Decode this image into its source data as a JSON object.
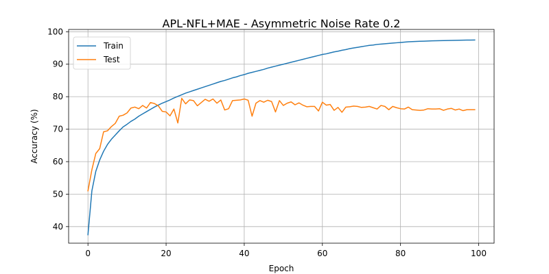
{
  "chart_data": {
    "type": "line",
    "title": "APL-NFL+MAE - Asymmetric Noise Rate 0.2",
    "xlabel": "Epoch",
    "ylabel": "Accuracy (%)",
    "xlim": [
      -4.95,
      103.95
    ],
    "ylim": [
      34.9,
      100.7
    ],
    "xticks": [
      0,
      20,
      40,
      60,
      80,
      100
    ],
    "yticks": [
      40,
      50,
      60,
      70,
      80,
      90,
      100
    ],
    "grid": true,
    "legend_position": "upper-left",
    "x": [
      0,
      1,
      2,
      3,
      4,
      5,
      6,
      7,
      8,
      9,
      10,
      11,
      12,
      13,
      14,
      15,
      16,
      17,
      18,
      19,
      20,
      21,
      22,
      23,
      24,
      25,
      26,
      27,
      28,
      29,
      30,
      31,
      32,
      33,
      34,
      35,
      36,
      37,
      38,
      39,
      40,
      41,
      42,
      43,
      44,
      45,
      46,
      47,
      48,
      49,
      50,
      51,
      52,
      53,
      54,
      55,
      56,
      57,
      58,
      59,
      60,
      61,
      62,
      63,
      64,
      65,
      66,
      67,
      68,
      69,
      70,
      71,
      72,
      73,
      74,
      75,
      76,
      77,
      78,
      79,
      80,
      81,
      82,
      83,
      84,
      85,
      86,
      87,
      88,
      89,
      90,
      91,
      92,
      93,
      94,
      95,
      96,
      97,
      98,
      99
    ],
    "series": [
      {
        "name": "Train",
        "color": "#1f77b4",
        "values": [
          37.5,
          51.0,
          57.0,
          60.5,
          63.2,
          65.3,
          66.9,
          68.2,
          69.5,
          70.7,
          71.5,
          72.4,
          73.1,
          74.0,
          74.7,
          75.4,
          76.1,
          76.8,
          77.4,
          78.0,
          78.5,
          79.0,
          79.6,
          80.1,
          80.6,
          81.1,
          81.5,
          81.9,
          82.3,
          82.7,
          83.1,
          83.5,
          83.9,
          84.3,
          84.7,
          85.0,
          85.4,
          85.8,
          86.1,
          86.5,
          86.8,
          87.2,
          87.5,
          87.8,
          88.1,
          88.4,
          88.8,
          89.1,
          89.4,
          89.7,
          90.0,
          90.3,
          90.6,
          90.9,
          91.2,
          91.5,
          91.8,
          92.1,
          92.4,
          92.7,
          93.0,
          93.2,
          93.5,
          93.8,
          94.0,
          94.3,
          94.5,
          94.8,
          95.0,
          95.2,
          95.4,
          95.6,
          95.8,
          95.9,
          96.1,
          96.2,
          96.3,
          96.4,
          96.5,
          96.6,
          96.7,
          96.8,
          96.9,
          96.95,
          97.0,
          97.05,
          97.1,
          97.15,
          97.2,
          97.22,
          97.25,
          97.28,
          97.3,
          97.32,
          97.35,
          97.37,
          97.4,
          97.42,
          97.44,
          97.45
        ]
      },
      {
        "name": "Test",
        "color": "#ff7f0e",
        "values": [
          51.0,
          57.5,
          62.5,
          64.0,
          69.2,
          69.5,
          70.8,
          71.8,
          74.0,
          74.3,
          75.0,
          76.5,
          76.8,
          76.3,
          77.3,
          76.5,
          78.2,
          77.9,
          77.2,
          75.5,
          75.3,
          74.1,
          76.2,
          71.9,
          79.5,
          77.8,
          79.0,
          78.8,
          77.2,
          78.2,
          79.2,
          78.6,
          79.3,
          78.0,
          79.0,
          75.9,
          76.3,
          78.8,
          78.9,
          79.0,
          79.3,
          78.9,
          74.0,
          78.0,
          78.8,
          78.3,
          78.9,
          78.5,
          75.3,
          78.8,
          77.3,
          78.0,
          78.4,
          77.5,
          78.1,
          77.4,
          76.9,
          77.0,
          77.0,
          75.6,
          78.3,
          77.4,
          77.6,
          75.8,
          76.7,
          75.2,
          76.8,
          76.9,
          77.1,
          77.0,
          76.7,
          76.8,
          77.0,
          76.6,
          76.2,
          77.3,
          77.0,
          76.0,
          77.0,
          76.6,
          76.3,
          76.2,
          76.8,
          76.0,
          75.9,
          75.8,
          75.9,
          76.3,
          76.2,
          76.2,
          76.3,
          75.8,
          76.2,
          76.4,
          75.9,
          76.2,
          75.7,
          76.0,
          76.0,
          76.0
        ]
      }
    ]
  }
}
